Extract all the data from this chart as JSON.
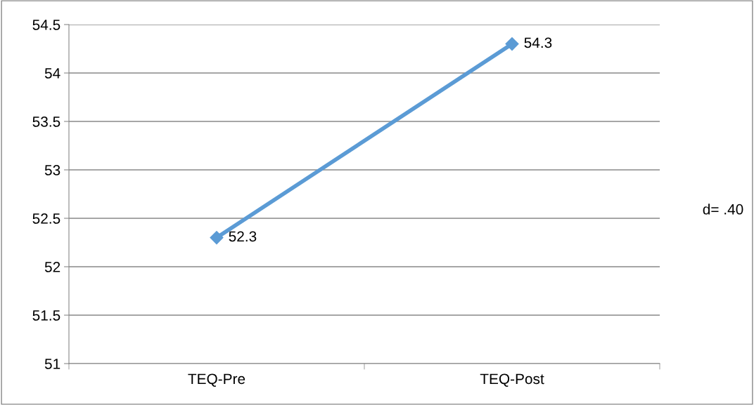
{
  "chart_data": {
    "type": "line",
    "categories": [
      "TEQ-Pre",
      "TEQ-Post"
    ],
    "series": [
      {
        "color": "#5b9bd5",
        "values": [
          52.3,
          54.3
        ]
      }
    ],
    "ylim": [
      51,
      54.5
    ],
    "yticks": [
      51,
      51.5,
      52,
      52.5,
      53,
      53.5,
      54,
      54.5
    ],
    "grid": "y",
    "marker": "diamond",
    "line_style": "solid",
    "data_labels": true,
    "legend": false,
    "annotations": [
      "d= .40"
    ]
  }
}
